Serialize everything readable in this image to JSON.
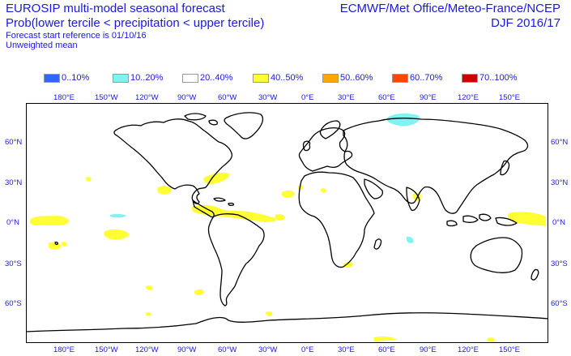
{
  "header": {
    "title_line1": "EUROSIP multi-model seasonal forecast",
    "title_line2": "Prob(lower tercile < precipitation < upper tercile)",
    "start_reference": "Forecast start reference is 01/10/16",
    "weighting": "Unweighted mean",
    "centres": "ECMWF/Met Office/Meteo-France/NCEP",
    "period": "DJF 2016/17"
  },
  "legend": [
    {
      "label": "0..10%",
      "color": "#3366ff"
    },
    {
      "label": "10..20%",
      "color": "#7ff2f2"
    },
    {
      "label": "20..40%",
      "color": "#ffffff"
    },
    {
      "label": "40..50%",
      "color": "#ffff33"
    },
    {
      "label": "50..60%",
      "color": "#ffa500"
    },
    {
      "label": "60..70%",
      "color": "#ff4500"
    },
    {
      "label": "70..100%",
      "color": "#cc0000"
    }
  ],
  "map": {
    "lon_labels": [
      "180°E",
      "150°W",
      "120°W",
      "90°W",
      "60°W",
      "30°W",
      "0°E",
      "30°E",
      "60°E",
      "90°E",
      "120°E",
      "150°E"
    ],
    "lat_labels_left": [
      "60°N",
      "30°N",
      "0°N",
      "30°S",
      "60°S"
    ],
    "lat_labels_right": [
      "60°N",
      "30°N",
      "0°N",
      "30°S",
      "60°S"
    ],
    "colors": {
      "land_outline": "#000000",
      "frame": "#000000",
      "label_text": "#1a1adc"
    },
    "regions": [
      {
        "name": "central-asia-blue",
        "category": "10..20%"
      },
      {
        "name": "indian-ocean-blue",
        "category": "10..20%"
      },
      {
        "name": "central-pacific-blue",
        "category": "10..20%"
      },
      {
        "name": "equatorial-atlantic-yellow",
        "category": "40..50%"
      },
      {
        "name": "caribbean-yellow",
        "category": "40..50%"
      },
      {
        "name": "equatorial-pacific-yellow",
        "category": "40..50%"
      }
    ]
  }
}
